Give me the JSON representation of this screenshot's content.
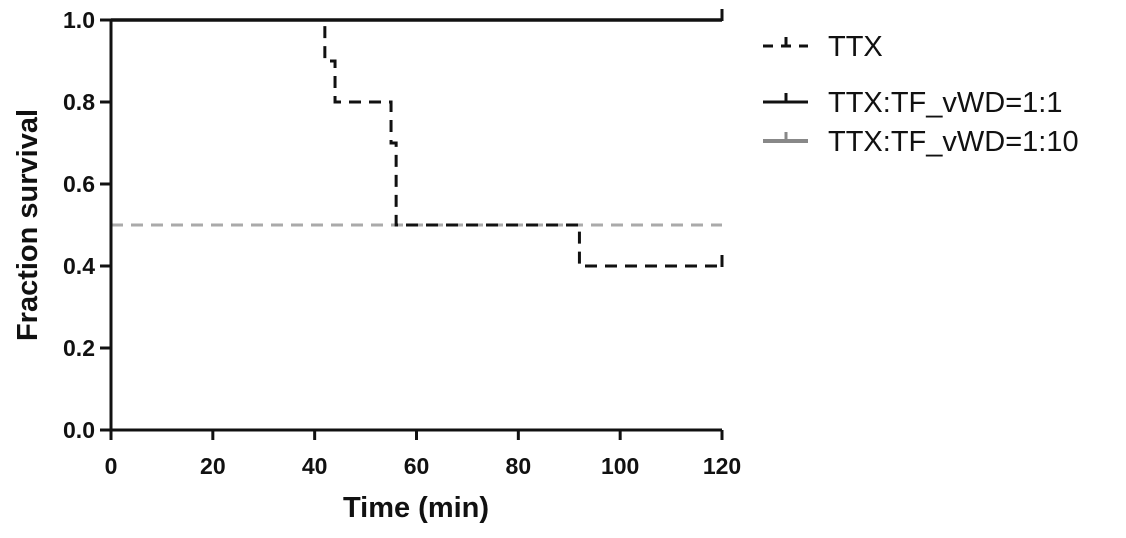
{
  "chart_data": {
    "type": "line",
    "subtype": "kaplan-meier step survival",
    "title": "",
    "xlabel": "Time (min)",
    "ylabel": "Fraction survival",
    "xlim": [
      0,
      120
    ],
    "ylim": [
      0,
      1.0
    ],
    "x_ticks": [
      0,
      20,
      40,
      60,
      80,
      100,
      120
    ],
    "x_tick_labels": [
      "0",
      "20",
      "40",
      "60",
      "80",
      "100",
      "120"
    ],
    "y_ticks": [
      0.0,
      0.2,
      0.4,
      0.6,
      0.8,
      1.0
    ],
    "y_tick_labels": [
      "0.0",
      "0.2",
      "0.4",
      "0.6",
      "0.8",
      "1.0"
    ],
    "grid": false,
    "legend_position": "right",
    "reference_line": {
      "y": 0.5,
      "style": "dashed",
      "color": "#aaaaaa"
    },
    "series": [
      {
        "name": "TTX",
        "style": "dashed",
        "color": "#111111",
        "steps": [
          [
            0,
            1.0
          ],
          [
            42,
            0.9
          ],
          [
            44,
            0.8
          ],
          [
            55,
            0.7
          ],
          [
            56,
            0.5
          ],
          [
            92,
            0.4
          ],
          [
            120,
            0.4
          ]
        ],
        "censor_marks": [
          [
            120,
            0.4
          ]
        ]
      },
      {
        "name": "TTX:TF_vWD=1:1",
        "style": "solid",
        "color": "#111111",
        "steps": [
          [
            0,
            1.0
          ],
          [
            120,
            1.0
          ]
        ],
        "censor_marks": [
          [
            120,
            1.0
          ]
        ]
      },
      {
        "name": "TTX:TF_vWD=1:10",
        "style": "solid",
        "color": "#888888",
        "steps": [
          [
            0,
            1.0
          ],
          [
            120,
            1.0
          ]
        ],
        "censor_marks": [
          [
            120,
            1.0
          ]
        ]
      }
    ]
  }
}
